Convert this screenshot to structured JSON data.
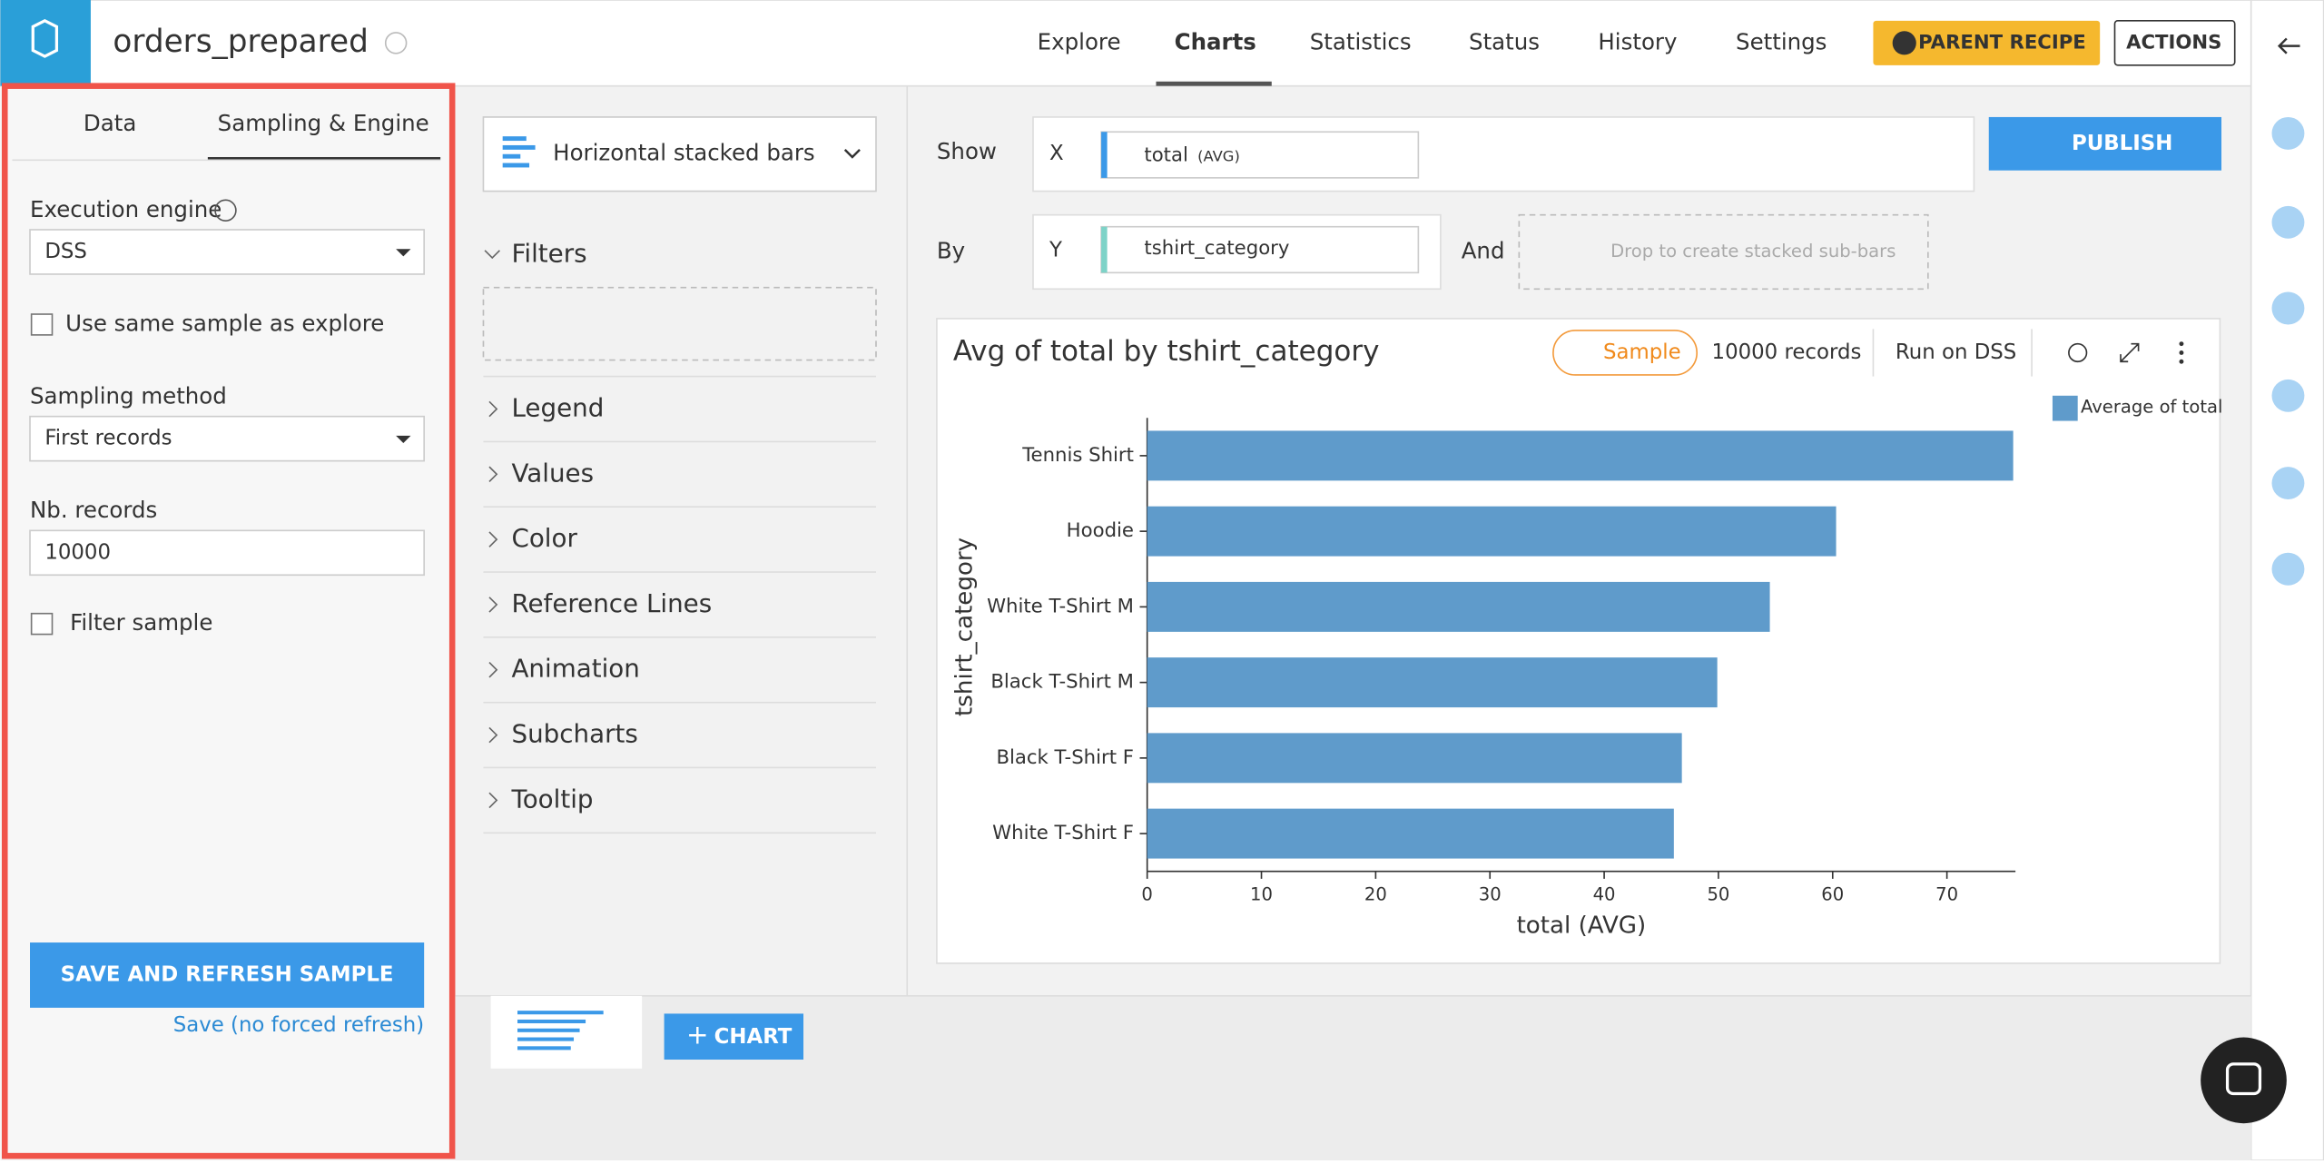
{
  "header": {
    "title": "orders_prepared",
    "nav": [
      "Explore",
      "Charts",
      "Statistics",
      "Status",
      "History",
      "Settings"
    ],
    "buttons": [
      "PARENT RECIPE",
      "ACTIONS"
    ]
  },
  "left_panel": {
    "tabs": [
      "Data",
      "Sampling & Engine"
    ],
    "engine_label": "Execution engine",
    "engine": "DSS",
    "same_sample": "Use same sample as explore",
    "method_label": "Sampling method",
    "method": "First records",
    "records_label": "Nb. records",
    "records": "10000",
    "filter": "Filter sample",
    "save_button": "SAVE AND REFRESH SAMPLE",
    "save_link": "Save (no forced refresh)"
  },
  "settings_panel": {
    "chart_type": "Horizontal stacked bars",
    "sections": [
      "Filters",
      "Legend",
      "Values",
      "Color",
      "Reference Lines",
      "Animation",
      "Subcharts",
      "Tooltip"
    ]
  },
  "builder": {
    "show": "Show",
    "x": "X",
    "x_field": "total",
    "x_agg": "(AVG)",
    "by": "By",
    "y": "Y",
    "y_field": "tshirt_category",
    "and": "And",
    "drop": "Drop to create stacked sub-bars",
    "publish": "PUBLISH"
  },
  "card": {
    "sample": "Sample",
    "records": "10000 records",
    "run": "Run on DSS"
  },
  "bottom": {
    "add_chart": "CHART"
  },
  "chart_data": {
    "type": "bar",
    "orientation": "horizontal",
    "title": "Avg of total by tshirt_category",
    "x_label": "total (AVG)",
    "y_label": "tshirt_category",
    "categories": [
      "Tennis Shirt",
      "Hoodie",
      "White T-Shirt M",
      "Black T-Shirt M",
      "Black T-Shirt F",
      "White T-Shirt F"
    ],
    "series": [
      {
        "name": "Average of total",
        "color": "#5f9bcb",
        "values": [
          75.8,
          60.3,
          54.5,
          49.9,
          46.8,
          46.1
        ]
      }
    ],
    "xlim": [
      0,
      76
    ],
    "xticks": [
      0,
      10,
      20,
      30,
      40,
      50,
      60,
      70
    ],
    "legend": "top-right"
  }
}
